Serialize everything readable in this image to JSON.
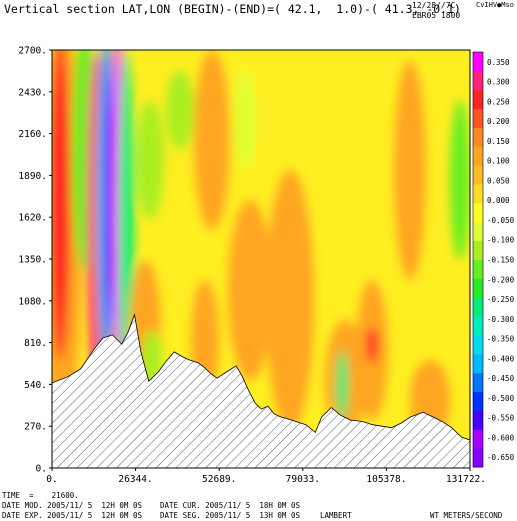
{
  "header": {
    "title": "Vertical section LAT,LON (BEGIN)-(END)=( 42.1,  1.0)-( 41.3, -0.1)",
    "stamp_line1": "12/28//7C",
    "stamp_line2": "EBR05 1800",
    "brand": "CvIHV●Mso"
  },
  "footer": {
    "time": "TIME  =    21600.",
    "date_mod": "DATE MOD. 2005/11/ 5  12H 0M 0S",
    "date_exp": "DATE EXP. 2005/11/ 5  12H 0M 0S",
    "date_cur": "DATE CUR. 2005/11/ 5  18H 0M 0S",
    "date_seg": "DATE SEG. 2005/11/ 5  13H 0M 0S",
    "projection": "LAMBERT",
    "units": "WT METERS/SECOND"
  },
  "chart_data": {
    "type": "heatmap",
    "variable": "WT",
    "units": "METERS/SECOND",
    "x_ticks": [
      "0.",
      "26344.",
      "52689.",
      "79033.",
      "105378.",
      "131722."
    ],
    "x_range": [
      0,
      131722
    ],
    "y_ticks": [
      "0.",
      "270.",
      "540.",
      "810.",
      "1080.",
      "1350.",
      "1620.",
      "1890.",
      "2160.",
      "2430.",
      "2700."
    ],
    "y_range": [
      0,
      2700
    ],
    "colorbar_ticks": [
      "0.350",
      "0.300",
      "0.250",
      "0.200",
      "0.150",
      "0.100",
      "0.050",
      "0.000",
      "-0.050",
      "-0.100",
      "-0.150",
      "-0.200",
      "-0.250",
      "-0.300",
      "-0.350",
      "-0.400",
      "-0.450",
      "-0.500",
      "-0.550",
      "-0.600",
      "-0.650"
    ],
    "colorbar_range": [
      -0.675,
      0.375
    ],
    "colorbar_colors": [
      "#8800ff",
      "#aa00ff",
      "#4a00ff",
      "#0033ff",
      "#0077ff",
      "#00bbff",
      "#00ddee",
      "#00eebb",
      "#00ee77",
      "#22ee22",
      "#66ee22",
      "#aaee22",
      "#ddff33",
      "#ffff22",
      "#ffdd22",
      "#ffbb22",
      "#ffa522",
      "#ff8822",
      "#ff5522",
      "#ff2222",
      "#ff2277",
      "#ff00ff"
    ],
    "terrain": [
      [
        0,
        550
      ],
      [
        5000,
        590
      ],
      [
        9000,
        640
      ],
      [
        13000,
        760
      ],
      [
        16000,
        840
      ],
      [
        19000,
        860
      ],
      [
        22000,
        800
      ],
      [
        24000,
        880
      ],
      [
        26000,
        990
      ],
      [
        28000,
        750
      ],
      [
        30500,
        560
      ],
      [
        33500,
        620
      ],
      [
        36000,
        690
      ],
      [
        38500,
        750
      ],
      [
        41000,
        720
      ],
      [
        43000,
        700
      ],
      [
        46000,
        680
      ],
      [
        48000,
        650
      ],
      [
        50000,
        610
      ],
      [
        52000,
        580
      ],
      [
        55000,
        620
      ],
      [
        58000,
        660
      ],
      [
        60000,
        590
      ],
      [
        62000,
        500
      ],
      [
        64000,
        420
      ],
      [
        66000,
        380
      ],
      [
        68000,
        400
      ],
      [
        70000,
        350
      ],
      [
        72000,
        330
      ],
      [
        74000,
        320
      ],
      [
        77000,
        300
      ],
      [
        80000,
        280
      ],
      [
        83000,
        230
      ],
      [
        85000,
        330
      ],
      [
        88000,
        390
      ],
      [
        91000,
        340
      ],
      [
        94000,
        310
      ],
      [
        98000,
        300
      ],
      [
        101000,
        280
      ],
      [
        104000,
        270
      ],
      [
        107000,
        260
      ],
      [
        110000,
        290
      ],
      [
        113000,
        330
      ],
      [
        117000,
        360
      ],
      [
        120000,
        330
      ],
      [
        123000,
        300
      ],
      [
        126000,
        260
      ],
      [
        129000,
        200
      ],
      [
        131722,
        180
      ]
    ]
  }
}
